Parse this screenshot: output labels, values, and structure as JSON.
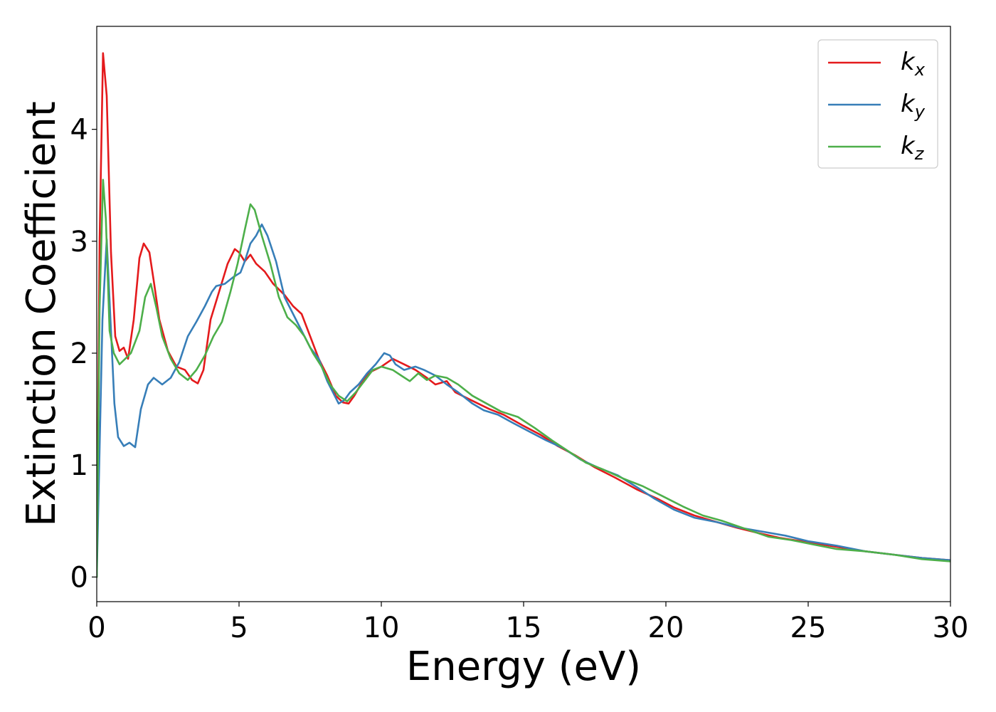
{
  "chart_data": {
    "type": "line",
    "title": "",
    "xlabel": "Energy (eV)",
    "ylabel": "Extinction Coefficient",
    "xlim": [
      0,
      30
    ],
    "ylim": [
      -0.22,
      4.92
    ],
    "xticks": [
      "0",
      "5",
      "10",
      "15",
      "20",
      "25",
      "30"
    ],
    "xtick_values": [
      0,
      5,
      10,
      15,
      20,
      25,
      30
    ],
    "yticks": [
      "0",
      "1",
      "2",
      "3",
      "4"
    ],
    "ytick_values": [
      0,
      1,
      2,
      3,
      4
    ],
    "grid": false,
    "legend_position": "top-right",
    "series": [
      {
        "name": "k",
        "subscript": "x",
        "color": "#e41a1c",
        "points": [
          [
            0,
            0
          ],
          [
            0.1,
            3.0
          ],
          [
            0.22,
            4.68
          ],
          [
            0.35,
            4.3
          ],
          [
            0.5,
            2.9
          ],
          [
            0.65,
            2.15
          ],
          [
            0.8,
            2.02
          ],
          [
            0.95,
            2.05
          ],
          [
            1.1,
            1.95
          ],
          [
            1.3,
            2.3
          ],
          [
            1.5,
            2.85
          ],
          [
            1.65,
            2.98
          ],
          [
            1.85,
            2.9
          ],
          [
            2.0,
            2.65
          ],
          [
            2.2,
            2.3
          ],
          [
            2.5,
            2.02
          ],
          [
            2.8,
            1.88
          ],
          [
            3.1,
            1.85
          ],
          [
            3.35,
            1.76
          ],
          [
            3.55,
            1.73
          ],
          [
            3.75,
            1.85
          ],
          [
            4.0,
            2.3
          ],
          [
            4.3,
            2.55
          ],
          [
            4.6,
            2.8
          ],
          [
            4.85,
            2.93
          ],
          [
            5.0,
            2.9
          ],
          [
            5.2,
            2.82
          ],
          [
            5.4,
            2.88
          ],
          [
            5.6,
            2.8
          ],
          [
            5.9,
            2.73
          ],
          [
            6.2,
            2.62
          ],
          [
            6.6,
            2.52
          ],
          [
            6.9,
            2.42
          ],
          [
            7.2,
            2.35
          ],
          [
            7.5,
            2.15
          ],
          [
            7.8,
            1.95
          ],
          [
            8.1,
            1.8
          ],
          [
            8.4,
            1.62
          ],
          [
            8.65,
            1.56
          ],
          [
            8.85,
            1.55
          ],
          [
            9.05,
            1.62
          ],
          [
            9.3,
            1.73
          ],
          [
            9.6,
            1.83
          ],
          [
            10.0,
            1.88
          ],
          [
            10.4,
            1.95
          ],
          [
            10.8,
            1.9
          ],
          [
            11.2,
            1.85
          ],
          [
            11.6,
            1.78
          ],
          [
            11.9,
            1.72
          ],
          [
            12.3,
            1.75
          ],
          [
            12.6,
            1.65
          ],
          [
            13.0,
            1.6
          ],
          [
            13.4,
            1.55
          ],
          [
            13.8,
            1.5
          ],
          [
            14.3,
            1.45
          ],
          [
            15.0,
            1.35
          ],
          [
            15.6,
            1.27
          ],
          [
            16.2,
            1.17
          ],
          [
            16.8,
            1.09
          ],
          [
            17.5,
            0.98
          ],
          [
            18.2,
            0.89
          ],
          [
            19.0,
            0.78
          ],
          [
            19.7,
            0.7
          ],
          [
            20.3,
            0.62
          ],
          [
            21.0,
            0.55
          ],
          [
            21.8,
            0.49
          ],
          [
            22.5,
            0.44
          ],
          [
            23.3,
            0.39
          ],
          [
            24.0,
            0.35
          ],
          [
            25.0,
            0.31
          ],
          [
            26.0,
            0.27
          ],
          [
            27.0,
            0.23
          ],
          [
            28.0,
            0.2
          ],
          [
            29.0,
            0.17
          ],
          [
            30.0,
            0.15
          ]
        ]
      },
      {
        "name": "k",
        "subscript": "y",
        "color": "#377eb8",
        "points": [
          [
            0,
            0
          ],
          [
            0.2,
            2.3
          ],
          [
            0.35,
            3.02
          ],
          [
            0.5,
            2.2
          ],
          [
            0.62,
            1.55
          ],
          [
            0.75,
            1.25
          ],
          [
            0.95,
            1.17
          ],
          [
            1.15,
            1.2
          ],
          [
            1.35,
            1.16
          ],
          [
            1.55,
            1.5
          ],
          [
            1.8,
            1.72
          ],
          [
            2.0,
            1.78
          ],
          [
            2.3,
            1.72
          ],
          [
            2.6,
            1.78
          ],
          [
            2.9,
            1.92
          ],
          [
            3.2,
            2.15
          ],
          [
            3.5,
            2.28
          ],
          [
            3.8,
            2.42
          ],
          [
            4.05,
            2.55
          ],
          [
            4.2,
            2.6
          ],
          [
            4.5,
            2.62
          ],
          [
            4.8,
            2.68
          ],
          [
            5.05,
            2.72
          ],
          [
            5.2,
            2.82
          ],
          [
            5.4,
            2.98
          ],
          [
            5.6,
            3.05
          ],
          [
            5.8,
            3.15
          ],
          [
            6.0,
            3.05
          ],
          [
            6.3,
            2.82
          ],
          [
            6.6,
            2.5
          ],
          [
            6.9,
            2.35
          ],
          [
            7.2,
            2.2
          ],
          [
            7.5,
            2.05
          ],
          [
            7.8,
            1.95
          ],
          [
            8.1,
            1.75
          ],
          [
            8.3,
            1.65
          ],
          [
            8.5,
            1.55
          ],
          [
            8.7,
            1.58
          ],
          [
            8.9,
            1.65
          ],
          [
            9.2,
            1.72
          ],
          [
            9.5,
            1.82
          ],
          [
            9.8,
            1.9
          ],
          [
            10.1,
            2.0
          ],
          [
            10.3,
            1.98
          ],
          [
            10.5,
            1.9
          ],
          [
            10.8,
            1.85
          ],
          [
            11.2,
            1.88
          ],
          [
            11.5,
            1.85
          ],
          [
            11.9,
            1.8
          ],
          [
            12.3,
            1.72
          ],
          [
            12.7,
            1.65
          ],
          [
            13.2,
            1.55
          ],
          [
            13.6,
            1.49
          ],
          [
            14.1,
            1.45
          ],
          [
            14.6,
            1.38
          ],
          [
            15.2,
            1.3
          ],
          [
            15.8,
            1.22
          ],
          [
            16.4,
            1.15
          ],
          [
            17.0,
            1.05
          ],
          [
            17.6,
            0.98
          ],
          [
            18.3,
            0.91
          ],
          [
            19.0,
            0.8
          ],
          [
            19.6,
            0.7
          ],
          [
            20.3,
            0.6
          ],
          [
            21.0,
            0.53
          ],
          [
            21.8,
            0.49
          ],
          [
            22.6,
            0.44
          ],
          [
            23.3,
            0.41
          ],
          [
            24.2,
            0.37
          ],
          [
            25.0,
            0.32
          ],
          [
            26.0,
            0.28
          ],
          [
            27.0,
            0.23
          ],
          [
            28.0,
            0.2
          ],
          [
            29.0,
            0.17
          ],
          [
            30.0,
            0.15
          ]
        ]
      },
      {
        "name": "k",
        "subscript": "z",
        "color": "#4daf4a",
        "points": [
          [
            0,
            0
          ],
          [
            0.1,
            2.4
          ],
          [
            0.22,
            3.55
          ],
          [
            0.32,
            3.2
          ],
          [
            0.45,
            2.2
          ],
          [
            0.6,
            2.0
          ],
          [
            0.8,
            1.9
          ],
          [
            1.0,
            1.95
          ],
          [
            1.2,
            2.0
          ],
          [
            1.5,
            2.2
          ],
          [
            1.7,
            2.5
          ],
          [
            1.9,
            2.62
          ],
          [
            2.1,
            2.4
          ],
          [
            2.3,
            2.15
          ],
          [
            2.6,
            1.95
          ],
          [
            2.9,
            1.82
          ],
          [
            3.2,
            1.76
          ],
          [
            3.5,
            1.85
          ],
          [
            3.8,
            1.98
          ],
          [
            4.1,
            2.15
          ],
          [
            4.4,
            2.28
          ],
          [
            4.7,
            2.55
          ],
          [
            4.95,
            2.8
          ],
          [
            5.2,
            3.1
          ],
          [
            5.4,
            3.33
          ],
          [
            5.55,
            3.28
          ],
          [
            5.8,
            3.05
          ],
          [
            6.1,
            2.8
          ],
          [
            6.4,
            2.5
          ],
          [
            6.7,
            2.32
          ],
          [
            7.0,
            2.25
          ],
          [
            7.3,
            2.15
          ],
          [
            7.6,
            2.0
          ],
          [
            7.9,
            1.88
          ],
          [
            8.2,
            1.72
          ],
          [
            8.5,
            1.62
          ],
          [
            8.8,
            1.57
          ],
          [
            9.1,
            1.65
          ],
          [
            9.4,
            1.75
          ],
          [
            9.7,
            1.85
          ],
          [
            10.0,
            1.88
          ],
          [
            10.4,
            1.85
          ],
          [
            10.7,
            1.8
          ],
          [
            11.0,
            1.75
          ],
          [
            11.3,
            1.82
          ],
          [
            11.6,
            1.76
          ],
          [
            11.9,
            1.8
          ],
          [
            12.3,
            1.78
          ],
          [
            12.7,
            1.72
          ],
          [
            13.2,
            1.62
          ],
          [
            13.7,
            1.55
          ],
          [
            14.2,
            1.48
          ],
          [
            14.8,
            1.43
          ],
          [
            15.4,
            1.33
          ],
          [
            16.0,
            1.22
          ],
          [
            16.6,
            1.12
          ],
          [
            17.2,
            1.02
          ],
          [
            17.8,
            0.96
          ],
          [
            18.5,
            0.88
          ],
          [
            19.2,
            0.81
          ],
          [
            19.9,
            0.72
          ],
          [
            20.6,
            0.63
          ],
          [
            21.3,
            0.55
          ],
          [
            22.0,
            0.5
          ],
          [
            22.8,
            0.43
          ],
          [
            23.6,
            0.36
          ],
          [
            24.4,
            0.33
          ],
          [
            25.2,
            0.29
          ],
          [
            26.0,
            0.25
          ],
          [
            27.0,
            0.23
          ],
          [
            28.0,
            0.2
          ],
          [
            29.0,
            0.16
          ],
          [
            30.0,
            0.14
          ]
        ]
      }
    ]
  }
}
